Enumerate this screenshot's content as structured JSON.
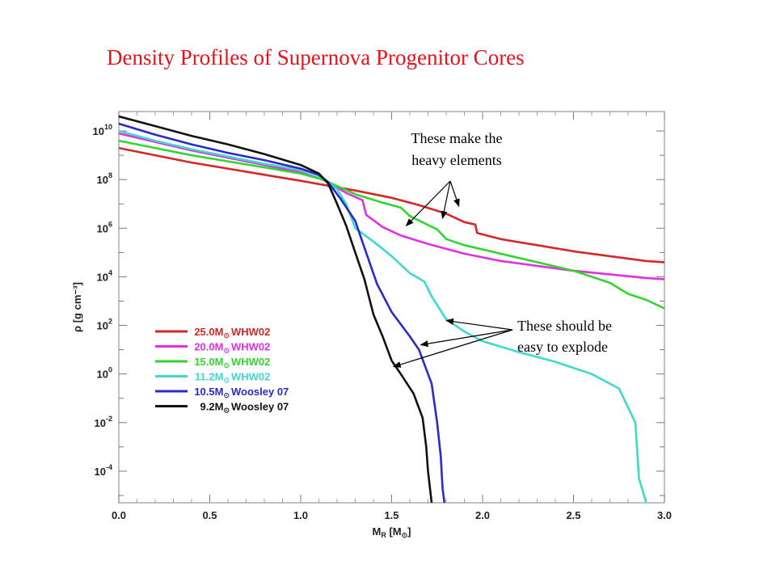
{
  "slide": {
    "title": "Density Profiles of Supernova Progenitor Cores"
  },
  "chart_data": {
    "type": "line",
    "title": "",
    "xlabel": "M",
    "xlabel_sub": "R",
    "xlabel_unit_open": " [M",
    "xlabel_unit_sun": "⊙",
    "xlabel_unit_close": "]",
    "ylabel": "ρ [g cm⁻³]",
    "xlim": [
      0,
      3.0
    ],
    "ylim_log10": [
      -5.3,
      10.8
    ],
    "y_scale": "log",
    "grid": false,
    "x_ticks": [
      {
        "value": 0.0,
        "label": "0.0"
      },
      {
        "value": 0.5,
        "label": "0.5"
      },
      {
        "value": 1.0,
        "label": "1.0"
      },
      {
        "value": 1.5,
        "label": "1.5"
      },
      {
        "value": 2.0,
        "label": "2.0"
      },
      {
        "value": 2.5,
        "label": "2.5"
      },
      {
        "value": 3.0,
        "label": "3.0"
      }
    ],
    "y_ticks": [
      {
        "exp": 10,
        "base": "10",
        "sup": "10"
      },
      {
        "exp": 8,
        "base": "10",
        "sup": "8"
      },
      {
        "exp": 6,
        "base": "10",
        "sup": "6"
      },
      {
        "exp": 4,
        "base": "10",
        "sup": "4"
      },
      {
        "exp": 2,
        "base": "10",
        "sup": "2"
      },
      {
        "exp": 0,
        "base": "10",
        "sup": "0"
      },
      {
        "exp": -2,
        "base": "10",
        "sup": "-2"
      },
      {
        "exp": -4,
        "base": "10",
        "sup": "-4"
      }
    ],
    "legend_placement": "left-center",
    "series": [
      {
        "name": "25.0M⊙ WHW02",
        "mass": "25.0M",
        "sun": "⊙",
        "source": " WHW02",
        "color": "#d62728",
        "x": [
          0.0,
          0.2,
          0.4,
          0.6,
          0.8,
          1.0,
          1.15,
          1.3,
          1.5,
          1.65,
          1.8,
          1.9,
          1.96,
          1.97,
          2.1,
          2.3,
          2.5,
          2.7,
          2.9,
          3.0
        ],
        "log_y": [
          9.3,
          9.0,
          8.7,
          8.45,
          8.2,
          7.95,
          7.75,
          7.55,
          7.25,
          6.95,
          6.6,
          6.25,
          6.15,
          5.8,
          5.55,
          5.3,
          5.05,
          4.85,
          4.65,
          4.6
        ]
      },
      {
        "name": "20.0M⊙ WHW02",
        "mass": "20.0M",
        "sun": "⊙",
        "source": " WHW02",
        "color": "#e22fe0",
        "x": [
          0.0,
          0.2,
          0.4,
          0.6,
          0.8,
          1.0,
          1.1,
          1.15,
          1.25,
          1.34,
          1.36,
          1.45,
          1.55,
          1.7,
          1.9,
          2.1,
          2.3,
          2.5,
          2.7,
          2.9,
          3.0
        ],
        "log_y": [
          9.9,
          9.55,
          9.2,
          8.9,
          8.6,
          8.3,
          8.05,
          7.9,
          7.45,
          7.15,
          6.55,
          6.05,
          5.7,
          5.35,
          4.95,
          4.65,
          4.45,
          4.25,
          4.1,
          3.95,
          3.9
        ]
      },
      {
        "name": "15.0M⊙ WHW02",
        "mass": "15.0M",
        "sun": "⊙",
        "source": " WHW02",
        "color": "#2fd62f",
        "x": [
          0.0,
          0.2,
          0.4,
          0.6,
          0.8,
          1.0,
          1.1,
          1.15,
          1.3,
          1.45,
          1.55,
          1.6,
          1.75,
          1.8,
          1.9,
          2.1,
          2.3,
          2.5,
          2.7,
          2.8,
          2.9,
          3.0
        ],
        "log_y": [
          9.6,
          9.3,
          9.0,
          8.75,
          8.5,
          8.25,
          8.05,
          7.9,
          7.4,
          7.05,
          6.85,
          6.5,
          5.95,
          5.55,
          5.3,
          4.95,
          4.6,
          4.25,
          3.75,
          3.3,
          3.05,
          2.7
        ]
      },
      {
        "name": "11.2M⊙ WHW02",
        "mass": "11.2M",
        "sun": "⊙",
        "source": " WHW02",
        "color": "#3fd8cc",
        "x": [
          0.0,
          0.2,
          0.4,
          0.6,
          0.8,
          1.0,
          1.1,
          1.15,
          1.2,
          1.25,
          1.3,
          1.4,
          1.5,
          1.6,
          1.68,
          1.72,
          1.77,
          1.8,
          1.9,
          2.0,
          2.2,
          2.4,
          2.6,
          2.75,
          2.84,
          2.86,
          2.9
        ],
        "log_y": [
          10.0,
          9.6,
          9.25,
          8.95,
          8.65,
          8.4,
          8.15,
          7.9,
          7.6,
          7.0,
          6.0,
          5.45,
          4.85,
          4.15,
          3.8,
          3.2,
          2.6,
          2.25,
          1.75,
          1.35,
          0.9,
          0.5,
          0.0,
          -0.6,
          -2.0,
          -4.3,
          -5.3
        ]
      },
      {
        "name": "10.5M⊙ Woosley 07",
        "mass": "10.5M",
        "sun": "⊙",
        "source": " Woosley 07",
        "color": "#2a2ac8",
        "x": [
          0.0,
          0.2,
          0.4,
          0.6,
          0.8,
          1.0,
          1.1,
          1.15,
          1.22,
          1.3,
          1.35,
          1.42,
          1.5,
          1.6,
          1.65,
          1.72,
          1.75,
          1.77,
          1.78,
          1.79
        ],
        "log_y": [
          10.3,
          9.85,
          9.45,
          9.1,
          8.8,
          8.45,
          8.2,
          7.9,
          7.2,
          6.3,
          5.2,
          3.7,
          2.55,
          1.55,
          1.0,
          -0.4,
          -2.0,
          -3.4,
          -4.7,
          -5.3
        ]
      },
      {
        "name": "9.2M⊙ Woosley 07",
        "mass": "9.2M",
        "sun": "⊙",
        "source": " Woosley 07",
        "color": "#111111",
        "x": [
          0.0,
          0.2,
          0.4,
          0.6,
          0.8,
          1.0,
          1.1,
          1.15,
          1.2,
          1.25,
          1.3,
          1.35,
          1.4,
          1.45,
          1.5,
          1.55,
          1.62,
          1.67,
          1.69,
          1.7,
          1.72
        ],
        "log_y": [
          10.6,
          10.2,
          9.8,
          9.45,
          9.05,
          8.6,
          8.25,
          7.85,
          7.0,
          6.1,
          5.0,
          3.9,
          2.45,
          1.55,
          0.55,
          0.0,
          -0.8,
          -1.8,
          -3.0,
          -4.0,
          -5.3
        ]
      }
    ],
    "annotations": [
      {
        "lines": [
          "These make the",
          "heavy elements"
        ],
        "arrow_targets": [
          {
            "x": 1.58,
            "log_y": 6.1
          },
          {
            "x": 1.78,
            "log_y": 6.4
          },
          {
            "x": 1.87,
            "log_y": 6.9
          }
        ]
      },
      {
        "lines": [
          "These should be",
          "easy to explode"
        ],
        "arrow_targets": [
          {
            "x": 1.8,
            "log_y": 2.2
          },
          {
            "x": 1.66,
            "log_y": 1.2
          },
          {
            "x": 1.51,
            "log_y": 0.3
          }
        ]
      }
    ]
  }
}
